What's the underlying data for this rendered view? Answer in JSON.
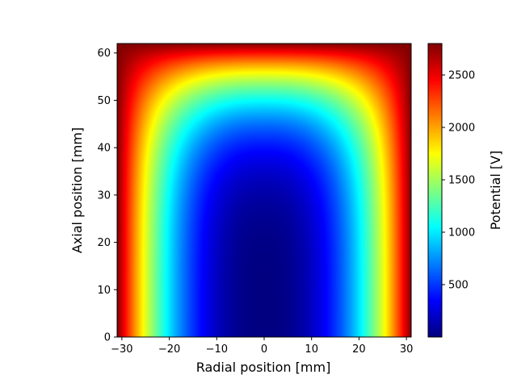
{
  "chart_data": {
    "type": "heatmap",
    "xlabel": "Radial position [mm]",
    "ylabel": "Axial position [mm]",
    "colorbar_label": "Potential [V]",
    "colormap": "jet",
    "xlim": [
      -31,
      31
    ],
    "ylim": [
      0,
      62
    ],
    "clim": [
      0,
      2800
    ],
    "x_ticks": [
      -30,
      -20,
      -10,
      0,
      10,
      20,
      30
    ],
    "x_tick_labels": [
      "−30",
      "−20",
      "−10",
      "0",
      "10",
      "20",
      "30"
    ],
    "y_ticks": [
      0,
      10,
      20,
      30,
      40,
      50,
      60
    ],
    "y_tick_labels": [
      "0",
      "10",
      "20",
      "30",
      "40",
      "50",
      "60"
    ],
    "colorbar_ticks": [
      500,
      1000,
      1500,
      2000,
      2500
    ],
    "colorbar_tick_labels": [
      "500",
      "1000",
      "1500",
      "2000",
      "2500"
    ],
    "field_model": {
      "description_values": {
        "potential_at_center_bottom_V": 0,
        "potential_at_walls_V": 2800,
        "potential_at_cap_V": 2800,
        "potential_at_center_y30_V": 230,
        "potential_at_center_y45_V": 1000,
        "potential_at_center_y55_V": 1800,
        "potential_at_x17_y0_V": 1000,
        "potential_at_x24_y0_V": 1900
      }
    }
  }
}
